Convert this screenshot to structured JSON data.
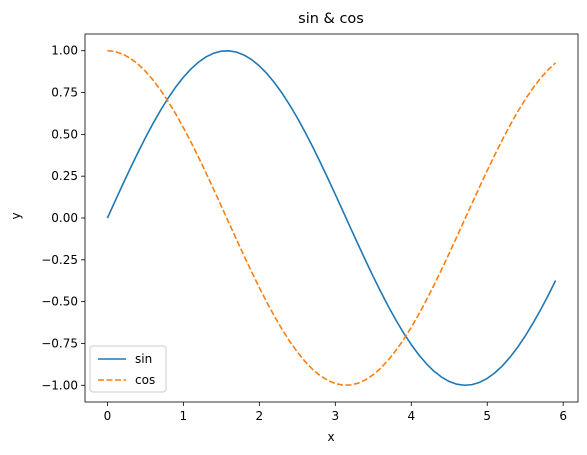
{
  "chart_data": {
    "type": "line",
    "title": "sin & cos",
    "xlabel": "x",
    "ylabel": "y",
    "xlim": [
      -0.295,
      6.195
    ],
    "ylim": [
      -1.1,
      1.1
    ],
    "xticks": [
      0,
      1,
      2,
      3,
      4,
      5,
      6
    ],
    "xtick_labels": [
      "0",
      "1",
      "2",
      "3",
      "4",
      "5",
      "6"
    ],
    "yticks": [
      1.0,
      0.75,
      0.5,
      0.25,
      0.0,
      -0.25,
      -0.5,
      -0.75,
      -1.0
    ],
    "ytick_labels": [
      "1.00",
      "0.75",
      "0.50",
      "0.25",
      "0.00",
      "−0.25",
      "−0.50",
      "−0.75",
      "−1.00"
    ],
    "grid": false,
    "legend": "lower-left",
    "x": [
      0.0,
      0.1,
      0.2,
      0.3,
      0.4,
      0.5,
      0.6,
      0.7,
      0.8,
      0.9,
      1.0,
      1.1,
      1.2,
      1.3,
      1.4,
      1.5,
      1.6,
      1.7,
      1.8,
      1.9,
      2.0,
      2.1,
      2.2,
      2.3,
      2.4,
      2.5,
      2.6,
      2.7,
      2.8,
      2.9,
      3.0,
      3.1,
      3.2,
      3.3,
      3.4,
      3.5,
      3.6,
      3.7,
      3.8,
      3.9,
      4.0,
      4.1,
      4.2,
      4.3,
      4.4,
      4.5,
      4.6,
      4.7,
      4.8,
      4.9,
      5.0,
      5.1,
      5.2,
      5.3,
      5.4,
      5.5,
      5.6,
      5.7,
      5.8,
      5.9
    ],
    "series": [
      {
        "name": "sin",
        "color": "#1f77b4",
        "style": "solid",
        "values": [
          0.0,
          0.0998,
          0.1987,
          0.2955,
          0.3894,
          0.4794,
          0.5646,
          0.6442,
          0.7174,
          0.7833,
          0.8415,
          0.8912,
          0.932,
          0.9636,
          0.9854,
          0.9975,
          0.9996,
          0.9917,
          0.9738,
          0.9463,
          0.9093,
          0.8632,
          0.8085,
          0.7457,
          0.6755,
          0.5985,
          0.5155,
          0.4274,
          0.335,
          0.2392,
          0.1411,
          0.0416,
          -0.0584,
          -0.1577,
          -0.2555,
          -0.3508,
          -0.4425,
          -0.5298,
          -0.6119,
          -0.6878,
          -0.7568,
          -0.8183,
          -0.8716,
          -0.9162,
          -0.9516,
          -0.9775,
          -0.9937,
          -0.9999,
          -0.9962,
          -0.9825,
          -0.9589,
          -0.9258,
          -0.8835,
          -0.8323,
          -0.7728,
          -0.7055,
          -0.6313,
          -0.5507,
          -0.4646,
          -0.3739
        ]
      },
      {
        "name": "cos",
        "color": "#ff7f0e",
        "style": "dashed",
        "values": [
          1.0,
          0.995,
          0.9801,
          0.9553,
          0.9211,
          0.8776,
          0.8253,
          0.7648,
          0.6967,
          0.6216,
          0.5403,
          0.4536,
          0.3624,
          0.2675,
          0.17,
          0.0707,
          -0.0292,
          -0.1288,
          -0.2272,
          -0.3233,
          -0.4161,
          -0.5048,
          -0.5885,
          -0.6663,
          -0.7374,
          -0.8011,
          -0.8569,
          -0.9041,
          -0.9422,
          -0.971,
          -0.99,
          -0.9991,
          -0.9983,
          -0.9875,
          -0.9668,
          -0.9365,
          -0.8968,
          -0.8481,
          -0.791,
          -0.7259,
          -0.6536,
          -0.5748,
          -0.4903,
          -0.4008,
          -0.3073,
          -0.2108,
          -0.1122,
          -0.0124,
          0.0875,
          0.1865,
          0.2837,
          0.378,
          0.4685,
          0.5544,
          0.6347,
          0.7087,
          0.7756,
          0.8347,
          0.8855,
          0.9275
        ]
      }
    ]
  }
}
